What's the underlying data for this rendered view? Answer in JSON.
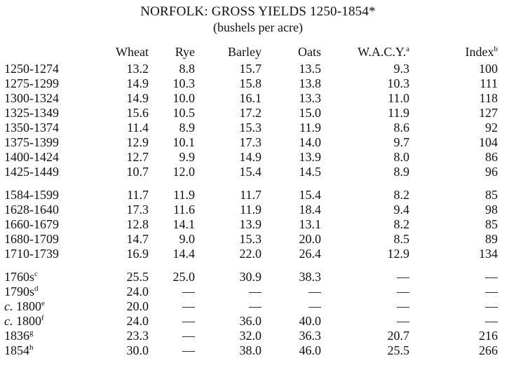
{
  "title": "NORFOLK: GROSS YIELDS 1250-1854*",
  "subtitle": "(bushels per acre)",
  "headers": {
    "wheat": "Wheat",
    "rye": "Rye",
    "barley": "Barley",
    "oats": "Oats",
    "wacy": "W.A.C.Y.",
    "wacy_note": "a",
    "index": "Index",
    "index_note": "b"
  },
  "groups": [
    {
      "rows": [
        {
          "period": "1250-1274",
          "wheat": "13.2",
          "rye": "8.8",
          "barley": "15.7",
          "oats": "13.5",
          "wacy": "9.3",
          "index": "100"
        },
        {
          "period": "1275-1299",
          "wheat": "14.9",
          "rye": "10.3",
          "barley": "15.8",
          "oats": "13.8",
          "wacy": "10.3",
          "index": "111"
        },
        {
          "period": "1300-1324",
          "wheat": "14.9",
          "rye": "10.0",
          "barley": "16.1",
          "oats": "13.3",
          "wacy": "11.0",
          "index": "118"
        },
        {
          "period": "1325-1349",
          "wheat": "15.6",
          "rye": "10.5",
          "barley": "17.2",
          "oats": "15.0",
          "wacy": "11.9",
          "index": "127"
        },
        {
          "period": "1350-1374",
          "wheat": "11.4",
          "rye": "8.9",
          "barley": "15.3",
          "oats": "11.9",
          "wacy": "8.6",
          "index": "92"
        },
        {
          "period": "1375-1399",
          "wheat": "12.9",
          "rye": "10.1",
          "barley": "17.3",
          "oats": "14.0",
          "wacy": "9.7",
          "index": "104"
        },
        {
          "period": "1400-1424",
          "wheat": "12.7",
          "rye": "9.9",
          "barley": "14.9",
          "oats": "13.9",
          "wacy": "8.0",
          "index": "86"
        },
        {
          "period": "1425-1449",
          "wheat": "10.7",
          "rye": "12.0",
          "barley": "15.4",
          "oats": "14.5",
          "wacy": "8.9",
          "index": "96"
        }
      ]
    },
    {
      "rows": [
        {
          "period": "1584-1599",
          "wheat": "11.7",
          "rye": "11.9",
          "barley": "11.7",
          "oats": "15.4",
          "wacy": "8.2",
          "index": "85"
        },
        {
          "period": "1628-1640",
          "wheat": "17.3",
          "rye": "11.6",
          "barley": "11.9",
          "oats": "18.4",
          "wacy": "9.4",
          "index": "98"
        },
        {
          "period": "1660-1679",
          "wheat": "12.8",
          "rye": "14.1",
          "barley": "13.9",
          "oats": "13.1",
          "wacy": "8.2",
          "index": "85"
        },
        {
          "period": "1680-1709",
          "wheat": "14.7",
          "rye": "9.0",
          "barley": "15.3",
          "oats": "20.0",
          "wacy": "8.5",
          "index": "89"
        },
        {
          "period": "1710-1739",
          "wheat": "16.9",
          "rye": "14.4",
          "barley": "22.0",
          "oats": "26.4",
          "wacy": "12.9",
          "index": "134"
        }
      ]
    },
    {
      "rows": [
        {
          "prefix": "",
          "period": "1760s",
          "note": "c",
          "wheat": "25.5",
          "rye": "25.0",
          "barley": "30.9",
          "oats": "38.3",
          "wacy": "—",
          "index": "—"
        },
        {
          "prefix": "",
          "period": "1790s",
          "note": "d",
          "wheat": "24.0",
          "rye": "—",
          "barley": "—",
          "oats": "—",
          "wacy": "—",
          "index": "—"
        },
        {
          "prefix": "c.",
          "period": "1800",
          "note": "e",
          "wheat": "20.0",
          "rye": "—",
          "barley": "—",
          "oats": "—",
          "wacy": "—",
          "index": "—"
        },
        {
          "prefix": "c.",
          "period": "1800",
          "note": "f",
          "wheat": "24.0",
          "rye": "—",
          "barley": "36.0",
          "oats": "40.0",
          "wacy": "—",
          "index": "—"
        },
        {
          "prefix": "",
          "period": "1836",
          "note": "g",
          "wheat": "23.3",
          "rye": "—",
          "barley": "32.0",
          "oats": "36.3",
          "wacy": "20.7",
          "index": "216"
        },
        {
          "prefix": "",
          "period": "1854",
          "note": "h",
          "wheat": "30.0",
          "rye": "—",
          "barley": "38.0",
          "oats": "46.0",
          "wacy": "25.5",
          "index": "266"
        }
      ]
    }
  ]
}
